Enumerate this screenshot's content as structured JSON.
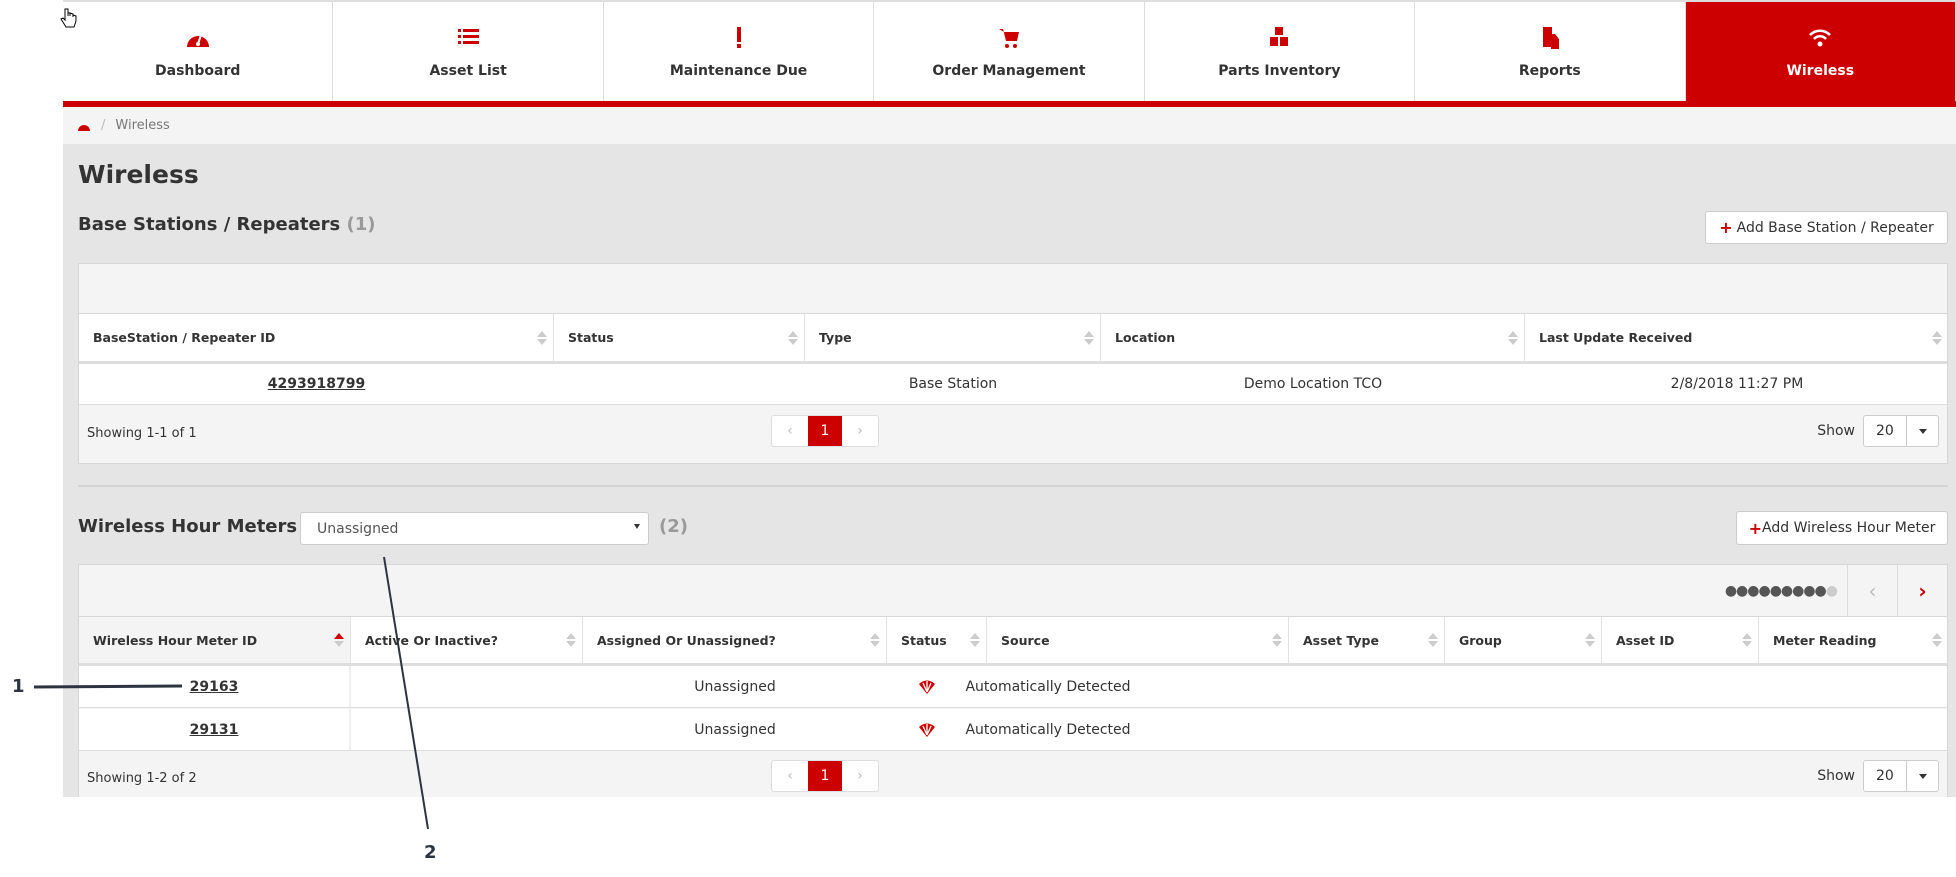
{
  "nav": {
    "tabs": [
      {
        "label": "Dashboard",
        "icon": "dashboard-icon"
      },
      {
        "label": "Asset List",
        "icon": "list-icon"
      },
      {
        "label": "Maintenance Due",
        "icon": "exclamation-icon"
      },
      {
        "label": "Order Management",
        "icon": "cart-icon"
      },
      {
        "label": "Parts Inventory",
        "icon": "cubes-icon"
      },
      {
        "label": "Reports",
        "icon": "document-icon"
      },
      {
        "label": "Wireless",
        "icon": "wifi-icon",
        "active": true
      }
    ]
  },
  "breadcrumb": {
    "current": "Wireless"
  },
  "page_title": "Wireless",
  "base_stations": {
    "title": "Base Stations / Repeaters",
    "count": "(1)",
    "add_label": "Add Base Station / Repeater",
    "columns": [
      "BaseStation / Repeater ID",
      "Status",
      "Type",
      "Location",
      "Last Update Received"
    ],
    "rows": [
      [
        "4293918799",
        "",
        "Base Station",
        "Demo Location TCO",
        "2/8/2018 11:27 PM"
      ]
    ],
    "showing": "Showing 1-1 of 1",
    "page": "1",
    "show_label": "Show",
    "page_size": "20"
  },
  "hour_meters": {
    "title": "Wireless Hour Meters",
    "filter": "Unassigned",
    "count": "(2)",
    "add_label": "Add Wireless Hour Meter",
    "columns": [
      "Wireless Hour Meter ID",
      "Active Or Inactive?",
      "Assigned Or Unassigned?",
      "Status",
      "Source",
      "Asset Type",
      "Group",
      "Asset ID",
      "Meter Reading"
    ],
    "rows": [
      [
        "29163",
        "",
        "Unassigned",
        "",
        "Automatically Detected",
        "",
        "",
        "",
        ""
      ],
      [
        "29131",
        "",
        "Unassigned",
        "",
        "Automatically Detected",
        "",
        "",
        "",
        ""
      ]
    ],
    "showing": "Showing 1-2 of 2",
    "page": "1",
    "show_label": "Show",
    "page_size": "20"
  },
  "annotations": [
    "1",
    "2"
  ],
  "colors": {
    "accent": "#cc0000",
    "background": "#e5e5e5"
  }
}
